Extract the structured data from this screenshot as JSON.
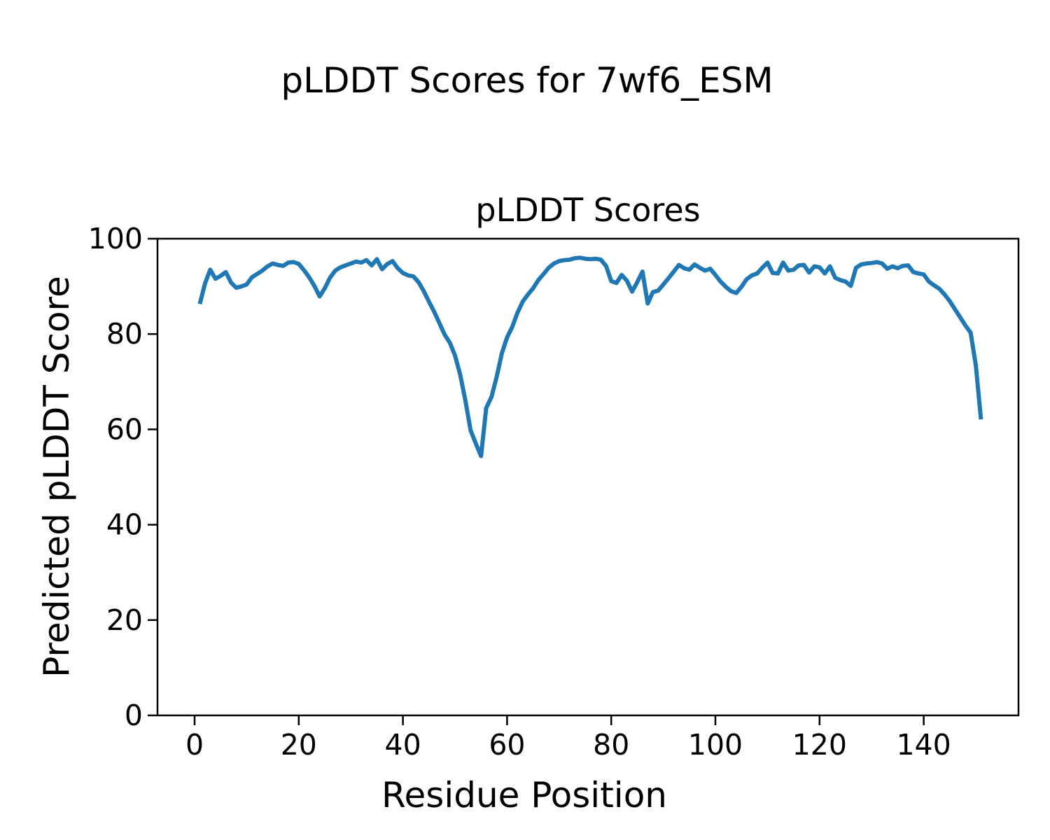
{
  "figure": {
    "suptitle": "pLDDT Scores for 7wf6_ESM",
    "axes_title": "pLDDT Scores",
    "xlabel": "Residue Position",
    "ylabel": "Predicted pLDDT Score"
  },
  "chart_data": {
    "type": "line",
    "title": "pLDDT Scores",
    "suptitle": "pLDDT Scores for 7wf6_ESM",
    "xlabel": "Residue Position",
    "ylabel": "Predicted pLDDT Score",
    "x_ticks": [
      0,
      20,
      40,
      60,
      80,
      100,
      120,
      140
    ],
    "y_ticks": [
      0,
      20,
      40,
      60,
      80,
      100
    ],
    "ylim": [
      0,
      100
    ],
    "xlim": [
      -7,
      159
    ],
    "grid": false,
    "legend": null,
    "line_color": "#1f77b4",
    "background_color": "#ffffff",
    "text_color": "#000000",
    "series": [
      {
        "name": "pLDDT",
        "x_start": 1,
        "x_step": 1,
        "values": [
          86.3,
          90.6,
          93.5,
          91.6,
          92.2,
          93.0,
          90.8,
          89.7,
          90.0,
          90.4,
          91.9,
          92.6,
          93.3,
          94.2,
          94.8,
          94.5,
          94.3,
          95.0,
          95.1,
          94.7,
          93.4,
          91.9,
          90.1,
          87.9,
          89.6,
          91.8,
          93.3,
          94.0,
          94.4,
          94.8,
          95.2,
          95.0,
          95.5,
          94.4,
          95.7,
          93.6,
          94.7,
          95.3,
          93.8,
          92.8,
          92.3,
          92.1,
          90.9,
          89.0,
          86.8,
          84.7,
          82.3,
          79.9,
          78.2,
          75.5,
          71.5,
          66.0,
          59.8,
          57.0,
          54.4,
          64.5,
          66.8,
          71.0,
          76.0,
          79.3,
          81.5,
          84.5,
          86.8,
          88.3,
          89.6,
          91.3,
          92.6,
          93.9,
          94.8,
          95.3,
          95.5,
          95.6,
          95.9,
          96.0,
          95.8,
          95.7,
          95.8,
          95.6,
          94.3,
          91.1,
          90.7,
          92.4,
          91.2,
          88.9,
          90.9,
          93.1,
          86.4,
          88.8,
          89.1,
          90.4,
          91.7,
          93.1,
          94.5,
          93.8,
          93.5,
          94.6,
          93.9,
          93.3,
          93.7,
          92.4,
          91.0,
          89.9,
          89.0,
          88.6,
          89.9,
          91.5,
          92.3,
          92.7,
          93.9,
          95.0,
          92.8,
          92.7,
          95.0,
          93.3,
          93.5,
          94.4,
          94.5,
          92.9,
          94.2,
          94.0,
          92.7,
          94.2,
          91.8,
          91.3,
          91.0,
          90.1,
          93.9,
          94.6,
          94.8,
          94.9,
          95.1,
          94.8,
          93.7,
          94.2,
          93.8,
          94.3,
          94.4,
          93.0,
          92.7,
          92.5,
          91.0,
          90.2,
          89.5,
          88.3,
          86.9,
          85.2,
          83.5,
          81.8,
          80.3,
          73.5,
          62.1
        ]
      }
    ]
  }
}
